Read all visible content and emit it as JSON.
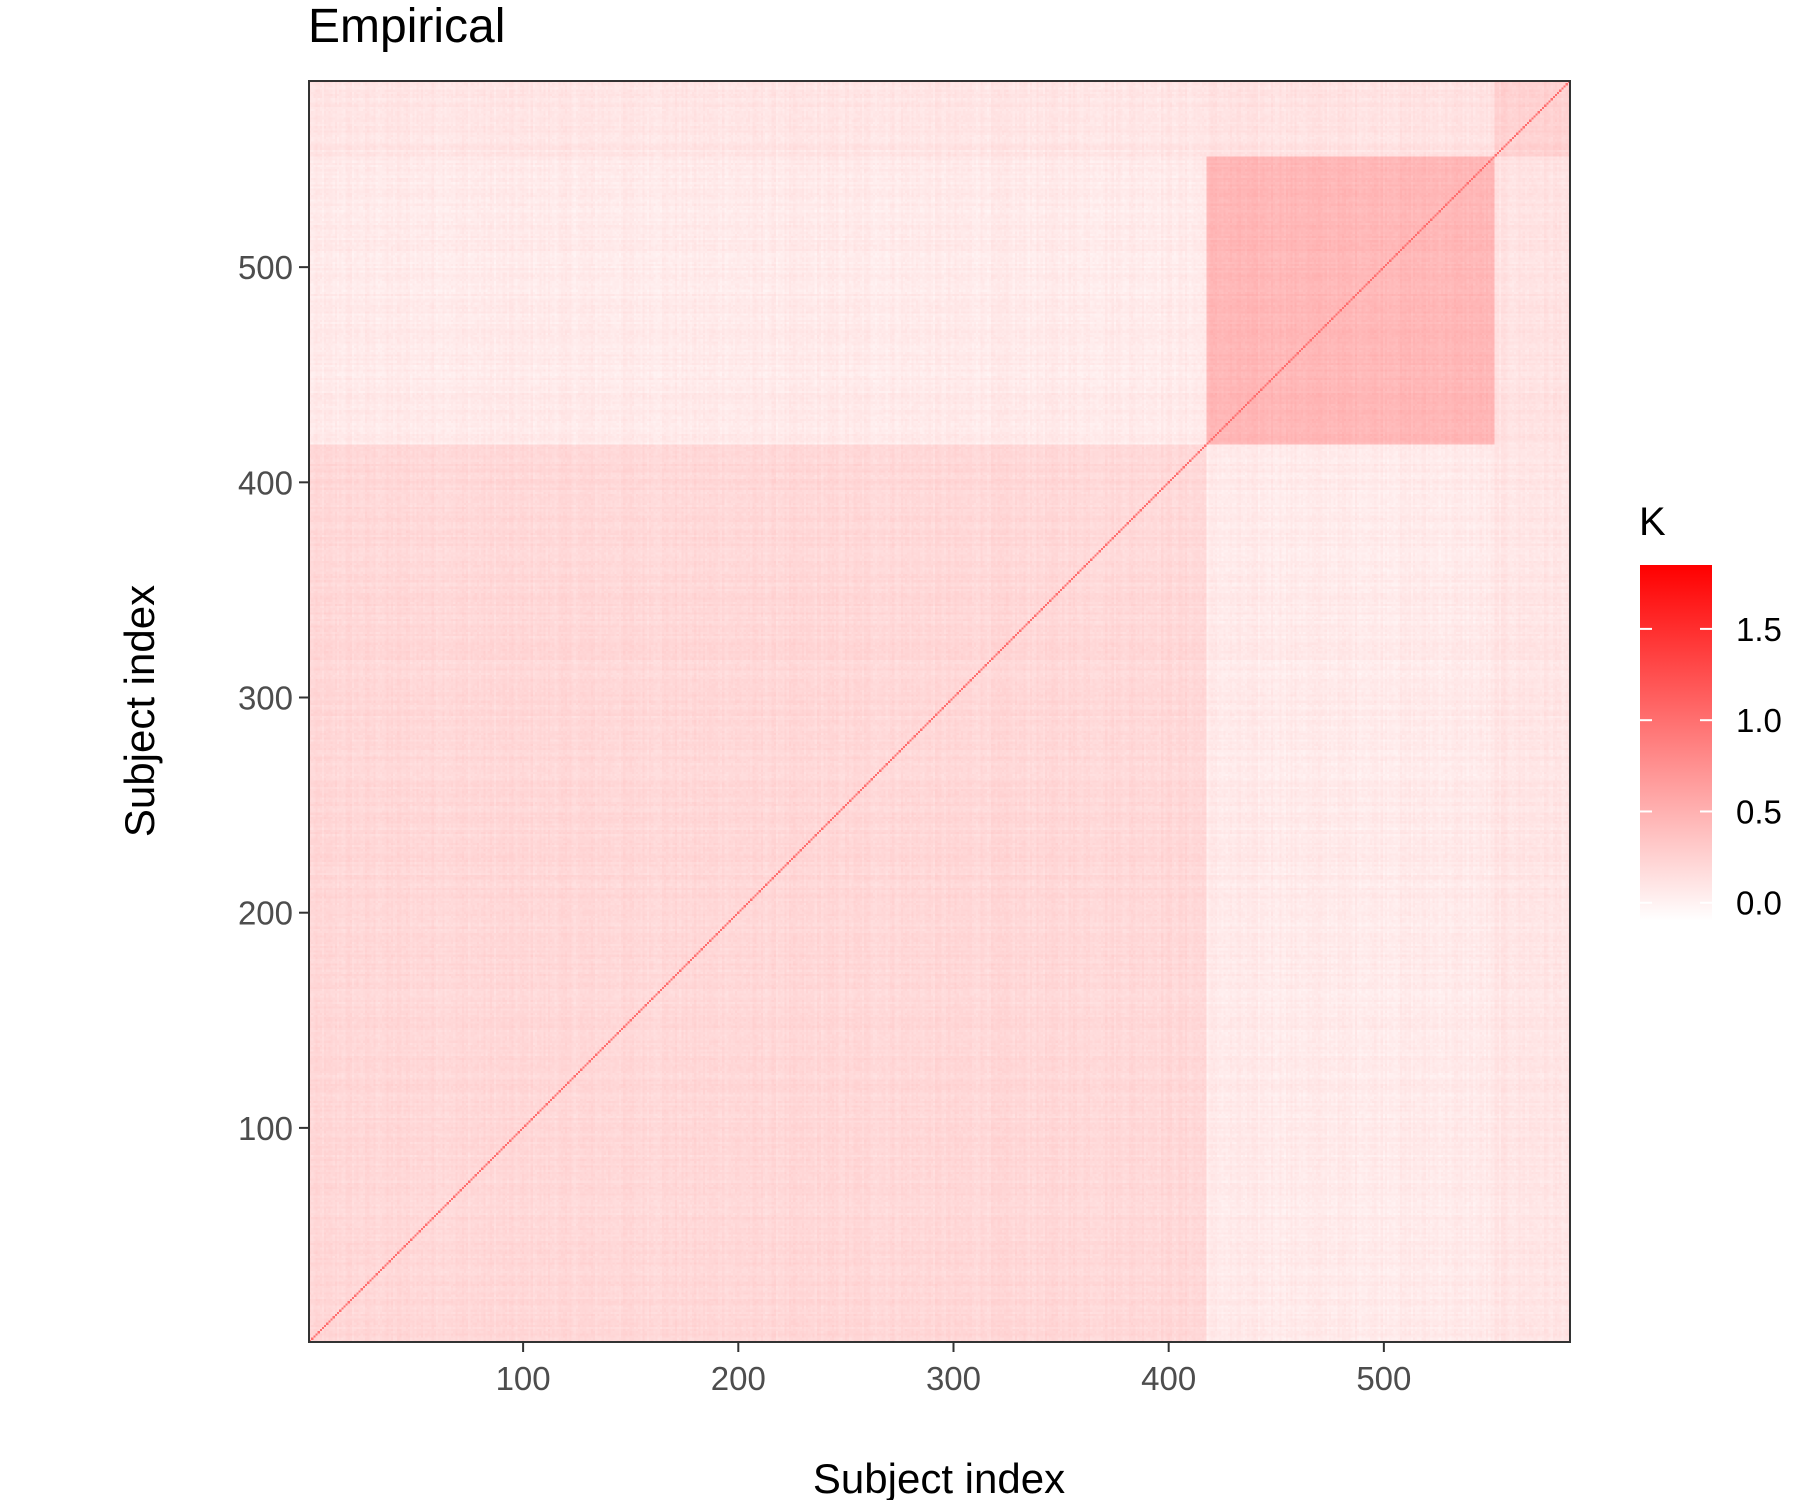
{
  "chart_data": {
    "type": "heatmap",
    "title": "Empirical",
    "xlabel": "Subject index",
    "ylabel": "Subject index",
    "n_subjects": 586,
    "xlim": [
      1,
      586
    ],
    "ylim": [
      1,
      586
    ],
    "x_ticks": [
      100,
      200,
      300,
      400,
      500
    ],
    "y_ticks": [
      100,
      200,
      300,
      400,
      500
    ],
    "x_tick_labels": [
      "100",
      "200",
      "300",
      "400",
      "500"
    ],
    "y_tick_labels": [
      "100",
      "200",
      "300",
      "400",
      "500"
    ],
    "groups": [
      {
        "start": 1,
        "end": 417
      },
      {
        "start": 418,
        "end": 551
      },
      {
        "start": 552,
        "end": 586
      }
    ],
    "block_values": [
      [
        0.2,
        0.06,
        0.1
      ],
      [
        0.06,
        0.45,
        0.12
      ],
      [
        0.1,
        0.12,
        0.25
      ]
    ],
    "diagonal_value": 1.0,
    "grid": false,
    "legend": {
      "title": "K",
      "position": "right",
      "range": [
        -0.1,
        1.85
      ],
      "ticks": [
        0.0,
        0.5,
        1.0,
        1.5
      ],
      "tick_labels": [
        "0.0",
        "0.5",
        "1.0",
        "1.5"
      ],
      "color_low": "#ffffff",
      "color_high": "#ff0000"
    }
  }
}
